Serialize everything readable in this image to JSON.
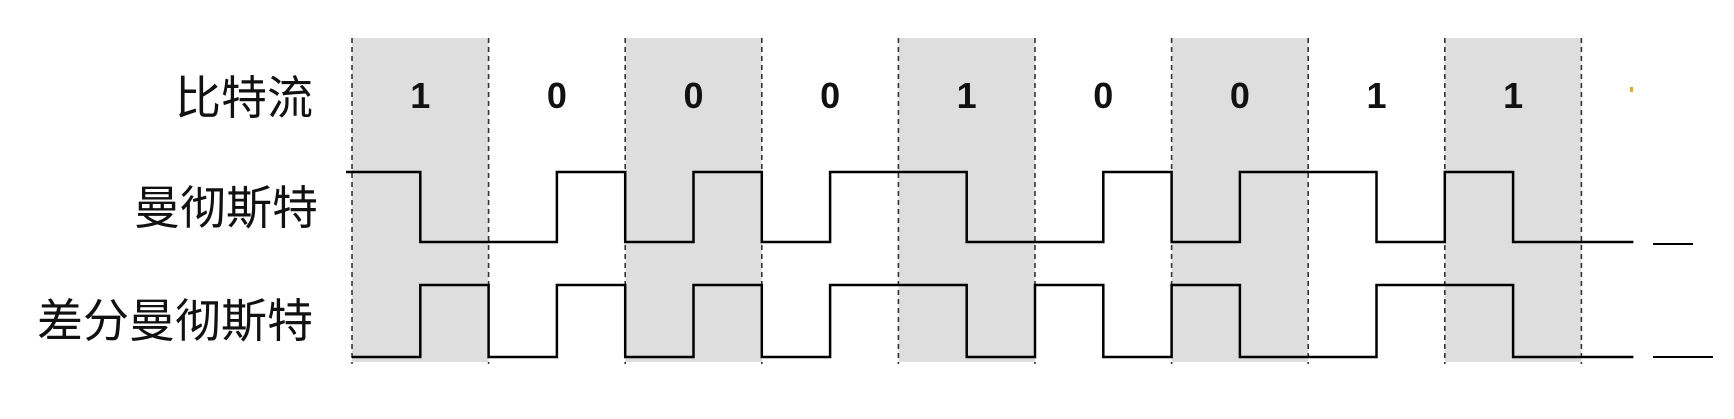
{
  "labels": {
    "bitstream": "比特流",
    "manchester": "曼彻斯特",
    "diff_manchester": "差分曼彻斯特"
  },
  "bits": [
    "1",
    "0",
    "0",
    "0",
    "1",
    "0",
    "0",
    "1",
    "1"
  ],
  "colors": {
    "shade": "#dedede",
    "line": "#000000",
    "dash": "#333333",
    "marker": "#e8a040"
  }
}
